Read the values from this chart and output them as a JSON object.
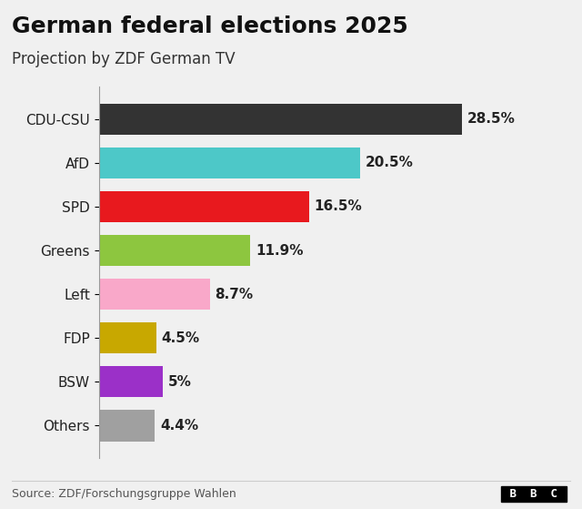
{
  "title": "German federal elections 2025",
  "subtitle": "Projection by ZDF German TV",
  "source": "Source: ZDF/Forschungsgruppe Wahlen",
  "logo": "BBC",
  "parties": [
    "CDU-CSU",
    "AfD",
    "SPD",
    "Greens",
    "Left",
    "FDP",
    "BSW",
    "Others"
  ],
  "values": [
    28.5,
    20.5,
    16.5,
    11.9,
    8.7,
    4.5,
    5.0,
    4.4
  ],
  "labels": [
    "28.5%",
    "20.5%",
    "16.5%",
    "11.9%",
    "8.7%",
    "4.5%",
    "5%",
    "4.4%"
  ],
  "colors": [
    "#333333",
    "#4dc8c8",
    "#e8191e",
    "#8dc63f",
    "#f9a8c9",
    "#c8a800",
    "#9b30c8",
    "#a0a0a0"
  ],
  "background_color": "#f0f0f0",
  "xlim": [
    0,
    32
  ],
  "bar_height": 0.72,
  "title_fontsize": 18,
  "subtitle_fontsize": 12,
  "label_fontsize": 11,
  "ytick_fontsize": 11,
  "source_fontsize": 9
}
